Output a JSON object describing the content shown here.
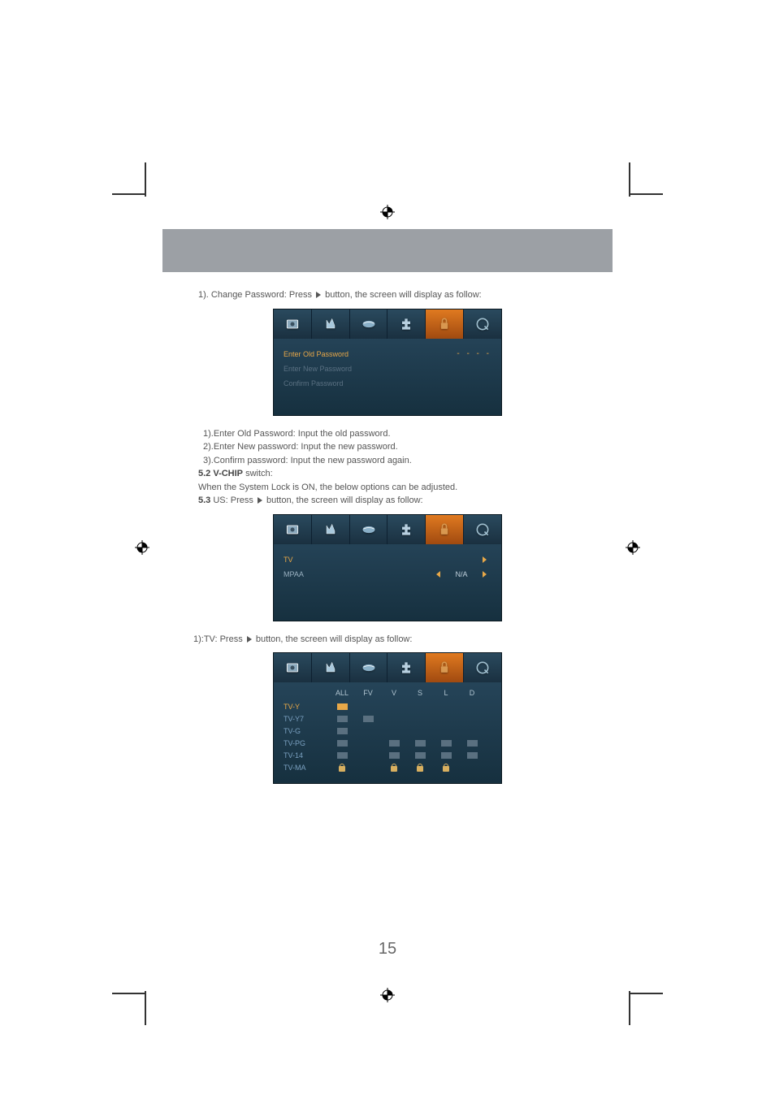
{
  "colors": {
    "band": "#9ca0a5",
    "menu_bg_top": "#2a4a60",
    "menu_bg_bot": "#16303f",
    "menu_border": "#0a1820",
    "tab_active_top": "#e07a20",
    "tab_active_bot": "#a04a10",
    "text_sel": "#e8a848",
    "text_dim": "#5a7082",
    "text_norm": "#99b0c0",
    "text_head": "#b0c4d0",
    "text_row": "#7aa0c0",
    "sq_off": "#5a7080",
    "sq_on": "#e8a848",
    "lock": "#d8b060",
    "body_text": "#555"
  },
  "page_number": "15",
  "intro": {
    "line1_pre": "1). Change Password: Press ",
    "line1_post": " button, the screen will display as follow:"
  },
  "menu1": {
    "rows": [
      {
        "label": "Enter Old  Password",
        "sel": true,
        "style": "dashes"
      },
      {
        "label": "Enter New Password",
        "sel": false
      },
      {
        "label": "Confirm Password",
        "sel": false
      }
    ],
    "dashes": "- - - -"
  },
  "mid_text": {
    "l1": "1).Enter Old Password: Input the old password.",
    "l2": "2).Enter New password: Input  the  new password.",
    "l3": "3).Confirm  password:  Input  the new password again.",
    "l4a": "5.2  V-CHIP",
    "l4b": " switch:",
    "l5": "When  the System Lock  is ON, the below options can  be adjusted.",
    "l6a": "5.3",
    "l6b": " US: Press  ",
    "l6c": " button, the screen will display as follow:"
  },
  "menu2": {
    "rows": [
      {
        "label": "TV",
        "sel": true,
        "right_arrow": true
      },
      {
        "label": "MPAA",
        "value": "N/A",
        "left_arrow": true,
        "right_arrow": true
      }
    ]
  },
  "tv_line": {
    "pre": "1):TV: Press ",
    "post": " button, the screen will  display as follow:"
  },
  "menu3": {
    "columns": [
      "ALL",
      "FV",
      "V",
      "S",
      "L",
      "D"
    ],
    "rows": [
      {
        "name": "TV-Y",
        "sel": true,
        "cells": [
          "on",
          "",
          "",
          "",
          "",
          ""
        ]
      },
      {
        "name": "TV-Y7",
        "cells": [
          "sq",
          "sq",
          "",
          "",
          "",
          ""
        ]
      },
      {
        "name": "TV-G",
        "cells": [
          "sq",
          "",
          "",
          "",
          "",
          ""
        ]
      },
      {
        "name": "TV-PG",
        "cells": [
          "sq",
          "",
          "sq",
          "sq",
          "sq",
          "sq"
        ]
      },
      {
        "name": "TV-14",
        "cells": [
          "sq",
          "",
          "sq",
          "sq",
          "sq",
          "sq"
        ]
      },
      {
        "name": "TV-MA",
        "cells": [
          "lock",
          "",
          "lock",
          "lock",
          "lock",
          ""
        ]
      }
    ]
  }
}
